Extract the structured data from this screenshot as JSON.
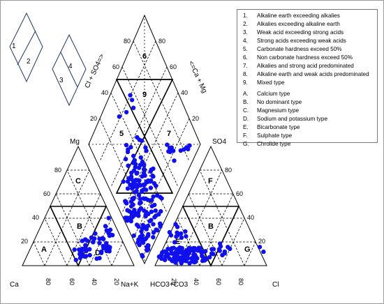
{
  "legend": {
    "items": [
      {
        "code": "1.",
        "text": "Alkaline earth exceeding alkalies"
      },
      {
        "code": "2.",
        "text": "Alkalies exceeding alkaline earth"
      },
      {
        "code": "3.",
        "text": "Weak acid exceeding strong acids"
      },
      {
        "code": "4.",
        "text": "Strong acids exceeding weak acids"
      },
      {
        "code": "5.",
        "text": "Carbonate hardness exceed 50%"
      },
      {
        "code": "6.",
        "text": "Non carbonate hardness exceed 50%"
      },
      {
        "code": "7.",
        "text": "Alkalies and strong acid predominated"
      },
      {
        "code": "8.",
        "text": "Alkaline earth and weak acids predominated"
      },
      {
        "code": "9.",
        "text": "Mixed type"
      },
      {
        "code": "A.",
        "text": "Calcium type"
      },
      {
        "code": "B.",
        "text": "No dominant type"
      },
      {
        "code": "C.",
        "text": "Magnesium type"
      },
      {
        "code": "D.",
        "text": "Sodium and potassium type"
      },
      {
        "code": "E.",
        "text": "Bicarbonate type"
      },
      {
        "code": "F.",
        "text": "Sulphate type"
      },
      {
        "code": "G.",
        "text": "Chrolide type"
      }
    ]
  },
  "key_diamonds": {
    "left": [
      "1",
      "2"
    ],
    "right": [
      "4",
      "3"
    ]
  },
  "cation_triangle": {
    "apex_label": "Mg",
    "left_label": "Ca",
    "right_label": "Na+K",
    "zones": [
      "A",
      "B",
      "C",
      "D"
    ],
    "tick_labels": [
      "20",
      "40",
      "60",
      "80",
      "80",
      "60",
      "40",
      "20"
    ]
  },
  "anion_triangle": {
    "apex_label": "SO4",
    "left_label": "HCO3+CO3",
    "right_label": "Cl",
    "zones": [
      "E",
      "B",
      "F",
      "G"
    ],
    "tick_labels": [
      "20",
      "40",
      "60",
      "80",
      "20",
      "40",
      "60",
      "80"
    ]
  },
  "diamond": {
    "left_axis_label": "Cl + SO4=>",
    "right_axis_label": "<=Ca + Mg",
    "zones": [
      "6",
      "9",
      "5",
      "7",
      "9",
      "8"
    ],
    "tick_labels": [
      "80",
      "60",
      "40",
      "20",
      "80",
      "60",
      "40",
      "20"
    ]
  },
  "styles": {
    "point_color": "#1010ee",
    "line_color": "#000000",
    "key_line_color": "#1f3864"
  }
}
